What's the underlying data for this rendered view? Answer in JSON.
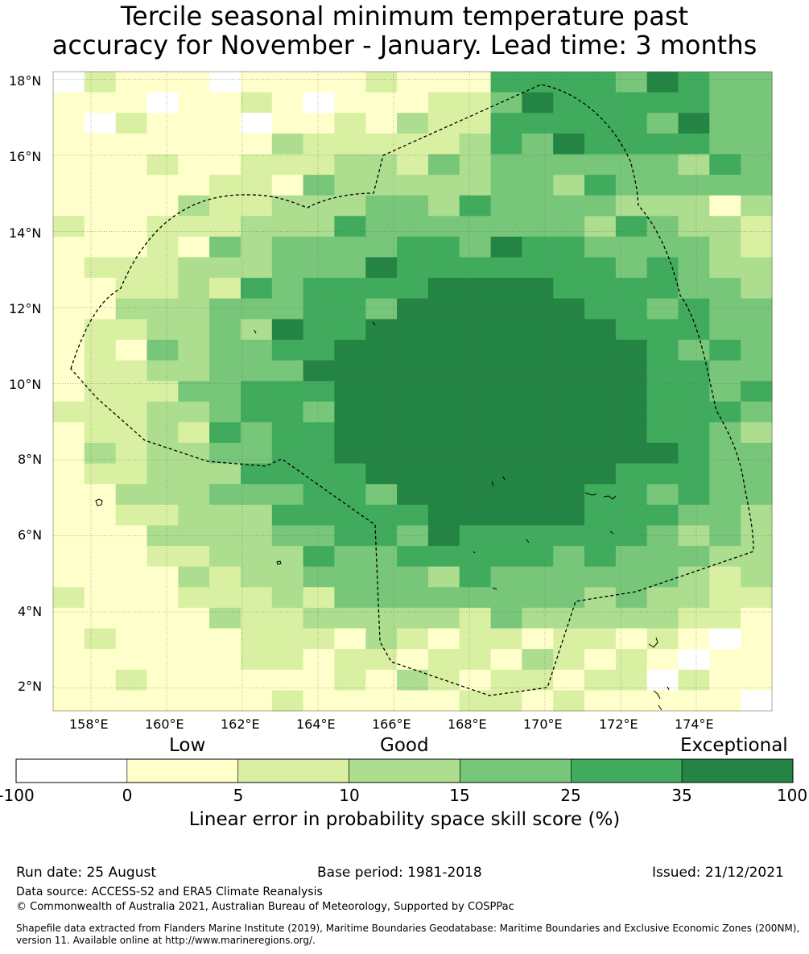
{
  "title": {
    "line1": "Tercile seasonal minimum temperature past",
    "line2": "accuracy for November - January. Lead time: 3 months"
  },
  "map": {
    "lon_range": [
      157,
      176
    ],
    "lat_range": [
      1.4,
      18.2
    ],
    "lon_ticks": [
      "158°E",
      "160°E",
      "162°E",
      "164°E",
      "166°E",
      "168°E",
      "170°E",
      "172°E",
      "174°E"
    ],
    "lat_ticks": [
      "2°N",
      "4°N",
      "6°N",
      "8°N",
      "10°N",
      "12°N",
      "14°N",
      "16°N",
      "18°N"
    ],
    "boundary_style": "dashed black line (EEZ)",
    "grid": true
  },
  "colorbar": {
    "categories": [
      "Low",
      "Good",
      "Exceptional"
    ],
    "ticks": [
      "-100",
      "0",
      "5",
      "10",
      "15",
      "25",
      "35",
      "100"
    ],
    "colors": [
      "#ffffff",
      "#ffffcc",
      "#d9f0a3",
      "#addd8e",
      "#78c679",
      "#41ab5d",
      "#238443"
    ],
    "label": "Linear error in probability space skill score (%)"
  },
  "footer": {
    "run_date": "Run date: 25 August",
    "base_period": "Base period: 1981-2018",
    "issued": "Issued: 21/12/2021",
    "data_source": "Data source: ACCESS-S2 and ERA5 Climate Reanalysis",
    "copyright": "© Commonwealth of Australia 2021, Australian Bureau of Meteorology, Supported by COSPPac",
    "shapefile": "Shapefile data extracted from Flanders Marine Institute (2019), Maritime Boundaries Geodatabase: Maritime Boundaries and Exclusive Economic Zones (200NM), version 11. Available online at http://www.marineregions.org/."
  }
}
